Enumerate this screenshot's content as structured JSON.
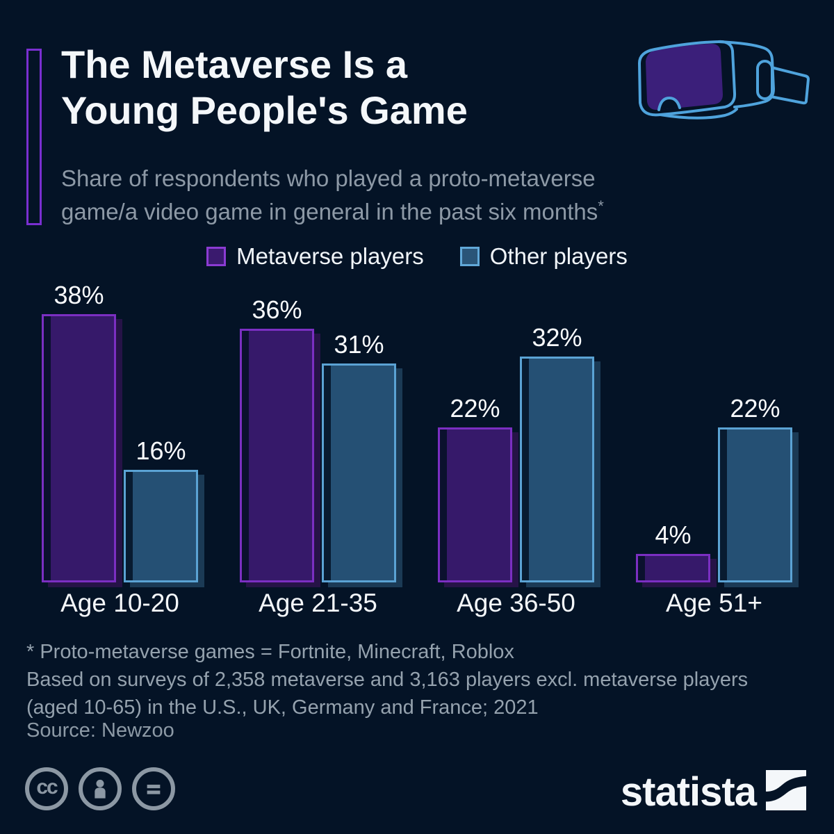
{
  "header": {
    "title_line1": "The Metaverse Is a",
    "title_line2": "Young People's Game",
    "subtitle_line1": "Share of respondents who played a proto-metaverse",
    "subtitle_line2": "game/a video game in general in the past six months",
    "subtitle_superscript": "*"
  },
  "icons": {
    "header_icon": "vr-headset-icon",
    "license_icons": [
      "cc-icon",
      "attribution-person-icon",
      "no-derivatives-equals-icon"
    ],
    "logo_icon": "statista-wave-icon"
  },
  "legend": [
    {
      "label": "Metaverse players",
      "fill": "#3A1A6E",
      "border": "#8B3BD2"
    },
    {
      "label": "Other players",
      "fill": "#2A5578",
      "border": "#61A8D8"
    }
  ],
  "chart_data": {
    "type": "bar",
    "categories": [
      "Age 10-20",
      "Age 21-35",
      "Age 36-50",
      "Age 51+"
    ],
    "series": [
      {
        "name": "Metaverse players",
        "values": [
          38,
          36,
          22,
          4
        ],
        "fill": "#36196A",
        "border": "#7B2FC2",
        "shadow": "#261347"
      },
      {
        "name": "Other players",
        "values": [
          16,
          31,
          32,
          22
        ],
        "fill": "#255074",
        "border": "#5BA3D4",
        "shadow": "#1B3A55"
      }
    ],
    "value_suffix": "%",
    "ylim": [
      0,
      40
    ],
    "grid": false,
    "legend_position": "top",
    "title": "The Metaverse Is a Young People's Game",
    "subtitle": "Share of respondents who played a proto-metaverse game/a video game in general in the past six months*"
  },
  "footer": {
    "footnote_line1": "* Proto-metaverse games = Fortnite, Minecraft, Roblox",
    "footnote_line2": "Based on surveys of 2,358 metaverse and 3,163 players excl. metaverse players",
    "footnote_line3": "(aged 10-65) in the U.S., UK, Germany and France; 2021",
    "source": "Source: Newzoo"
  },
  "branding": {
    "cc_text": "cc",
    "logo_text": "statista"
  },
  "colors": {
    "background": "#041326",
    "accent_purple": "#7A2FD0",
    "title_text": "#F4F7FA",
    "subtitle_text": "#8D99A6",
    "footnote_text": "#95A2AE",
    "license_gray": "#8C98A4",
    "headset_outline_blue": "#4FA3DC",
    "headset_screen_purple": "#3B1F7A"
  }
}
